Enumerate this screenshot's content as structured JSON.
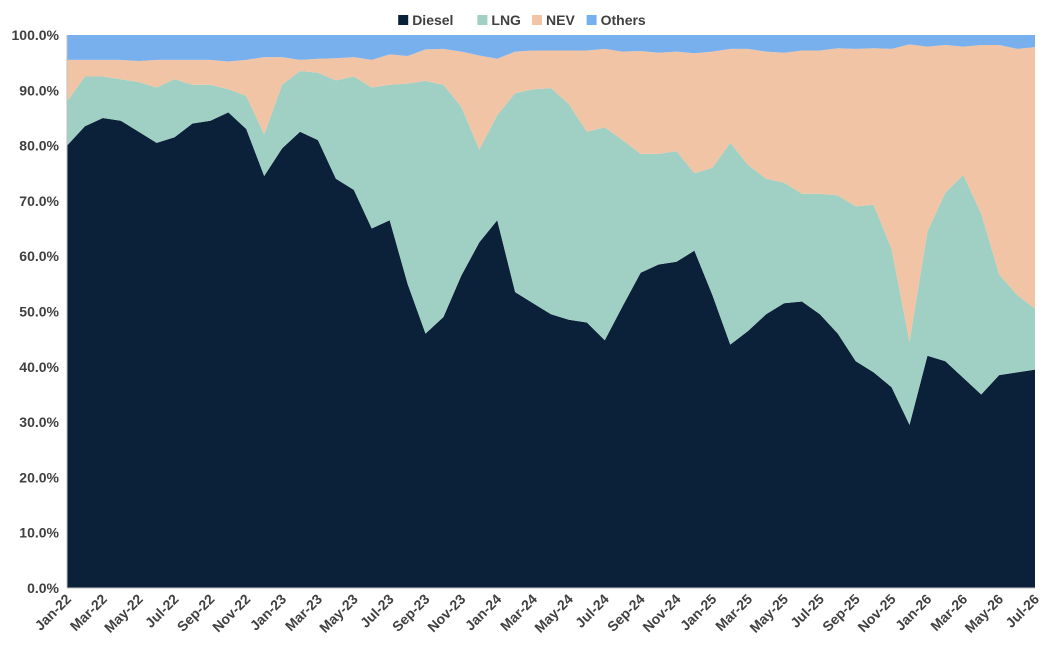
{
  "chart_data": {
    "type": "area",
    "stacked": true,
    "normalized_percent": true,
    "categories": [
      "Jan-22",
      "Feb-22",
      "Mar-22",
      "Apr-22",
      "May-22",
      "Jun-22",
      "Jul-22",
      "Aug-22",
      "Sep-22",
      "Oct-22",
      "Nov-22",
      "Dec-22",
      "Jan-23",
      "Feb-23",
      "Mar-23",
      "Apr-23",
      "May-23",
      "Jun-23",
      "Jul-23",
      "Aug-23",
      "Sep-23",
      "Oct-23",
      "Nov-23",
      "Dec-23",
      "Jan-24",
      "Feb-24",
      "Mar-24",
      "Apr-24",
      "May-24",
      "Jun-24",
      "Jul-24",
      "Aug-24",
      "Sep-24",
      "Oct-24",
      "Nov-24",
      "Dec-24",
      "Jan-25",
      "Feb-25",
      "Mar-25",
      "Apr-25",
      "May-25",
      "Jun-25",
      "Jul-25",
      "Aug-25",
      "Sep-25",
      "Oct-25",
      "Nov-25",
      "Dec-25",
      "Jan-26",
      "Feb-26",
      "Mar-26",
      "Apr-26",
      "May-26",
      "Jun-26",
      "Jul-26"
    ],
    "xticks": [
      "Jan-22",
      "Mar-22",
      "May-22",
      "Jul-22",
      "Sep-22",
      "Nov-22",
      "Jan-23",
      "Mar-23",
      "May-23",
      "Jul-23",
      "Sep-23",
      "Nov-23",
      "Jan-24",
      "Mar-24",
      "May-24",
      "Jul-24",
      "Sep-24",
      "Nov-24",
      "Jan-25",
      "Mar-25",
      "May-25",
      "Jul-25",
      "Sep-25",
      "Nov-25",
      "Jan-26",
      "Mar-26",
      "May-26",
      "Jul-26"
    ],
    "yticks": [
      "0.0%",
      "10.0%",
      "20.0%",
      "30.0%",
      "40.0%",
      "50.0%",
      "60.0%",
      "70.0%",
      "80.0%",
      "90.0%",
      "100.0%"
    ],
    "ylim": [
      0,
      100
    ],
    "grid": false,
    "legend_position": "top",
    "series": [
      {
        "name": "Diesel",
        "color": "#0b2039",
        "values": [
          80,
          83.5,
          85,
          84.5,
          82.5,
          80.5,
          81.5,
          84,
          84.5,
          86,
          83,
          74.5,
          79.5,
          82.5,
          81,
          74,
          72,
          65,
          66.5,
          55,
          46,
          49,
          56.5,
          62.5,
          66.5,
          53.5,
          51.5,
          49.5,
          48.5,
          48,
          44.8,
          51,
          57,
          58.5,
          59,
          61,
          53,
          44,
          46.5,
          49.5,
          51.5,
          51.8,
          49.5,
          46,
          41,
          39,
          36.3,
          29.5,
          42,
          41,
          38,
          35,
          38.5,
          39,
          39.5
        ]
      },
      {
        "name": "LNG",
        "color": "#a0d0c3",
        "values": [
          8,
          9,
          7.5,
          7.5,
          9,
          10,
          10.5,
          7,
          6.5,
          4.2,
          6,
          7.5,
          11.5,
          11,
          12.2,
          17.8,
          20.5,
          25.5,
          24.5,
          36.2,
          45.7,
          42,
          30.5,
          16.8,
          19,
          36,
          38.7,
          40.9,
          39,
          34.5,
          38.5,
          30,
          21.5,
          20,
          20,
          14,
          23,
          36.5,
          30,
          24.5,
          21.8,
          19.5,
          21.8,
          25,
          28,
          30.3,
          25,
          15,
          22.5,
          30.5,
          36.7,
          32.7,
          18.2,
          14,
          11
        ]
      },
      {
        "name": "NEV",
        "color": "#f2c4a6",
        "values": [
          7.5,
          3,
          3,
          3.5,
          3.8,
          5,
          3.5,
          4.5,
          4.5,
          5,
          6.5,
          14,
          5,
          2,
          2.5,
          4,
          3.5,
          5,
          5.5,
          5,
          5.7,
          6.5,
          10,
          17,
          10.2,
          7.5,
          7,
          6.8,
          9.7,
          14.7,
          14.2,
          16,
          18.6,
          18.3,
          18,
          21.7,
          21,
          17,
          21,
          23,
          23.5,
          25.9,
          25.9,
          26.6,
          28.5,
          28.3,
          36.2,
          53.8,
          33.4,
          26.7,
          23.2,
          30.5,
          41.5,
          44.5,
          47.3
        ]
      },
      {
        "name": "Others",
        "color": "#77b0ec",
        "values": [
          4.5,
          4.5,
          4.5,
          4.5,
          4.7,
          4.5,
          4.5,
          4.5,
          4.5,
          4.8,
          4.5,
          4,
          4,
          4.5,
          4.3,
          4.2,
          4,
          4.5,
          3.5,
          3.8,
          2.6,
          2.5,
          3,
          3.7,
          4.3,
          3,
          2.8,
          2.8,
          2.8,
          2.8,
          2.5,
          3,
          2.9,
          3.2,
          3,
          3.3,
          3,
          2.5,
          2.5,
          3,
          3.2,
          2.8,
          2.8,
          2.4,
          2.5,
          2.4,
          2.5,
          1.7,
          2.1,
          1.8,
          2.1,
          1.8,
          1.8,
          2.5,
          2.2
        ]
      }
    ]
  }
}
